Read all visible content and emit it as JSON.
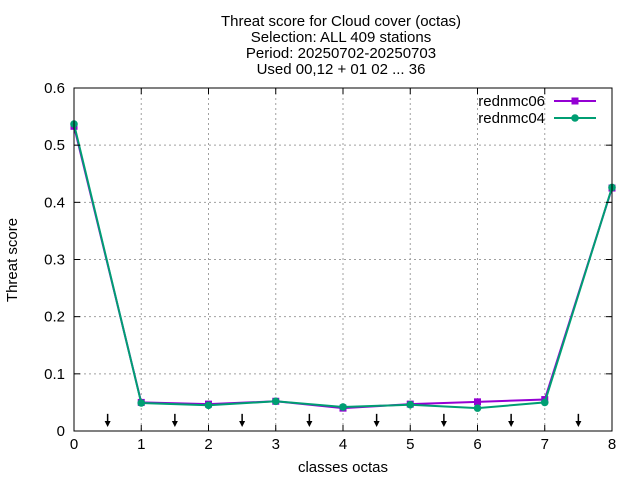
{
  "chart_data": {
    "type": "line",
    "title_lines": [
      "Threat score  for Cloud cover (octas)",
      "Selection: ALL    409 stations",
      "Period: 20250702-20250703",
      "Used 00,12 + 01 02 ... 36"
    ],
    "xlabel": "classes octas",
    "ylabel": "Threat score",
    "xlim": [
      0,
      8
    ],
    "ylim": [
      0,
      0.6
    ],
    "xticks": [
      0,
      1,
      2,
      3,
      4,
      5,
      6,
      7,
      8
    ],
    "yticks": [
      0,
      0.1,
      0.2,
      0.3,
      0.4,
      0.5,
      0.6
    ],
    "ytick_labels": [
      "0",
      "0.1",
      "0.2",
      "0.3",
      "0.4",
      "0.5",
      "0.6"
    ],
    "grid": true,
    "legend_position": "top-right",
    "x": [
      0,
      1,
      2,
      3,
      4,
      5,
      6,
      7,
      8
    ],
    "series": [
      {
        "name": "rednmc06",
        "color": "#9400d3",
        "values": [
          0.533,
          0.05,
          0.047,
          0.052,
          0.04,
          0.047,
          0.051,
          0.055,
          0.425
        ]
      },
      {
        "name": "rednmc04",
        "color": "#009e73",
        "values": [
          0.537,
          0.049,
          0.045,
          0.052,
          0.042,
          0.046,
          0.04,
          0.05,
          0.426
        ]
      }
    ],
    "arrows_x": [
      0.5,
      1.5,
      2.5,
      3.5,
      4.5,
      5.5,
      6.5,
      7.5
    ],
    "arrow_range": [
      0,
      0.03
    ]
  }
}
